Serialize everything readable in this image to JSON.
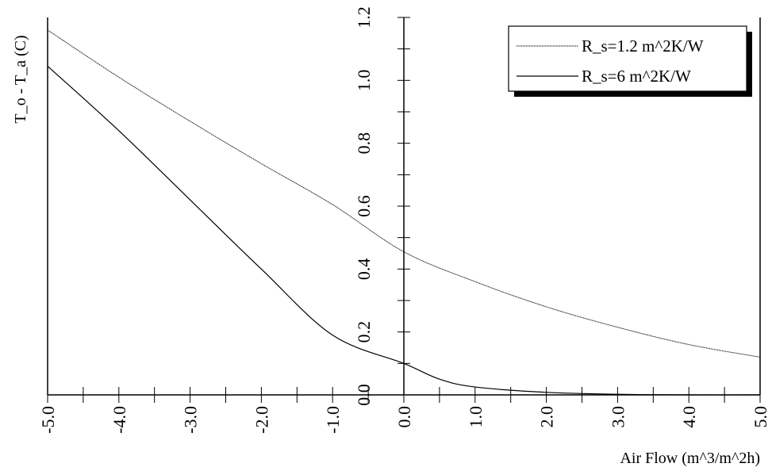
{
  "chart_data": {
    "type": "line",
    "title": "",
    "xlabel": "Air Flow (m^3/m^2h)",
    "ylabel": "T_o - T_a (C)",
    "xlim": [
      -5.0,
      5.0
    ],
    "ylim": [
      0.0,
      1.2
    ],
    "x_ticks": [
      "-5.0",
      "-4.0",
      "-3.0",
      "-2.0",
      "-1.0",
      "0.0",
      "1.0",
      "2.0",
      "3.0",
      "4.0",
      "5.0"
    ],
    "y_ticks": [
      "0.0",
      "0.2",
      "0.4",
      "0.6",
      "0.8",
      "1.0",
      "1.2"
    ],
    "grid": false,
    "legend_position": "top-right",
    "series": [
      {
        "name": "R_s=1.2 m^2K/W",
        "color": "#000000",
        "style": "dotted-fine",
        "points": [
          [
            -5.0,
            1.16
          ],
          [
            -4.0,
            1.01
          ],
          [
            -3.0,
            0.87
          ],
          [
            -2.0,
            0.735
          ],
          [
            -1.0,
            0.605
          ],
          [
            0.0,
            0.455
          ],
          [
            1.0,
            0.36
          ],
          [
            2.0,
            0.28
          ],
          [
            3.0,
            0.215
          ],
          [
            4.0,
            0.16
          ],
          [
            5.0,
            0.12
          ]
        ]
      },
      {
        "name": "R_s=6 m^2K/W",
        "color": "#000000",
        "style": "solid",
        "points": [
          [
            -5.0,
            1.045
          ],
          [
            -4.0,
            0.84
          ],
          [
            -3.0,
            0.62
          ],
          [
            -2.0,
            0.4
          ],
          [
            -1.0,
            0.19
          ],
          [
            0.0,
            0.1
          ],
          [
            0.5,
            0.05
          ],
          [
            1.0,
            0.025
          ],
          [
            2.0,
            0.008
          ],
          [
            3.0,
            0.002
          ],
          [
            4.0,
            0.0
          ],
          [
            5.0,
            0.0
          ]
        ]
      }
    ]
  }
}
